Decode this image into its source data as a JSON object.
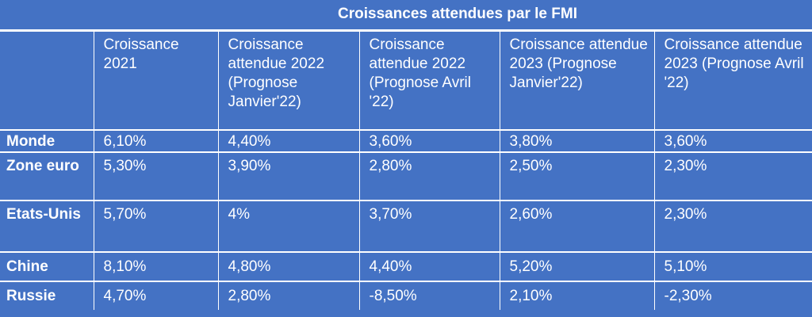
{
  "title": "Croissances attendues par le FMI",
  "columns": [
    "",
    "Croissance 2021",
    "Croissance attendue 2022 (Prognose Janvier'22)",
    "Croissance attendue 2022 (Prognose Avril '22)",
    "Croissance attendue 2023 (Prognose Janvier'22)",
    "Croissance attendue 2023 (Prognose Avril '22)"
  ],
  "rows": [
    {
      "label": "Monde",
      "values": [
        "6,10%",
        "4,40%",
        "3,60%",
        "3,80%",
        "3,60%"
      ]
    },
    {
      "label": "Zone euro",
      "values": [
        "5,30%",
        "3,90%",
        "2,80%",
        "2,50%",
        "2,30%"
      ]
    },
    {
      "label": "Etats-Unis",
      "values": [
        "5,70%",
        "4%",
        "3,70%",
        "2,60%",
        "2,30%"
      ]
    },
    {
      "label": "Chine",
      "values": [
        "8,10%",
        "4,80%",
        "4,40%",
        "5,20%",
        "5,10%"
      ]
    },
    {
      "label": "Russie",
      "values": [
        "4,70%",
        "2,80%",
        "-8,50%",
        "2,10%",
        "-2,30%"
      ]
    }
  ]
}
